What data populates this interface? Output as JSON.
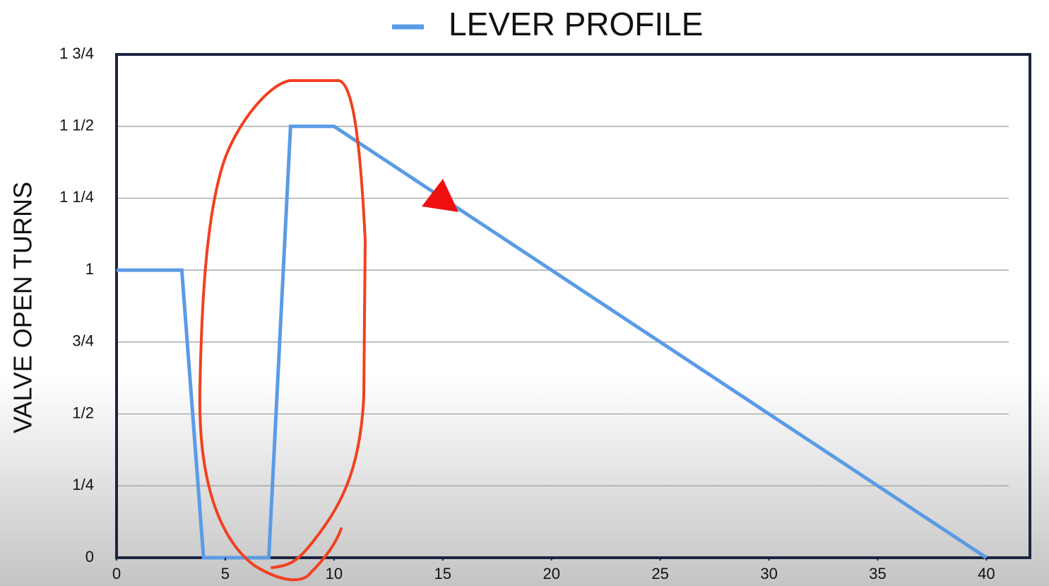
{
  "chart_data": {
    "type": "line",
    "legend_title": "LEVER PROFILE",
    "y_label": "VALVE OPEN TURNS",
    "x": [
      0,
      3,
      4,
      7,
      8,
      10,
      40
    ],
    "series": [
      {
        "name": "LEVER PROFILE",
        "color": "#5b9be6",
        "values": [
          1,
          1,
          0,
          0,
          1.5,
          1.5,
          0
        ]
      }
    ],
    "xlim": [
      0,
      42
    ],
    "xticks": [
      0,
      5,
      10,
      15,
      20,
      25,
      30,
      35,
      40
    ],
    "ylim": [
      0,
      1.75
    ],
    "yticks": [
      0,
      {
        "value": 0.25,
        "label": "1/4"
      },
      {
        "value": 0.5,
        "label": "1/2"
      },
      {
        "value": 0.75,
        "label": "3/4"
      },
      1,
      {
        "value": 1.25,
        "label": "1 1/4"
      },
      {
        "value": 1.5,
        "label": "1 1/2"
      },
      {
        "value": 1.75,
        "label": "1 3/4"
      }
    ],
    "grid": true,
    "legend": "top"
  }
}
